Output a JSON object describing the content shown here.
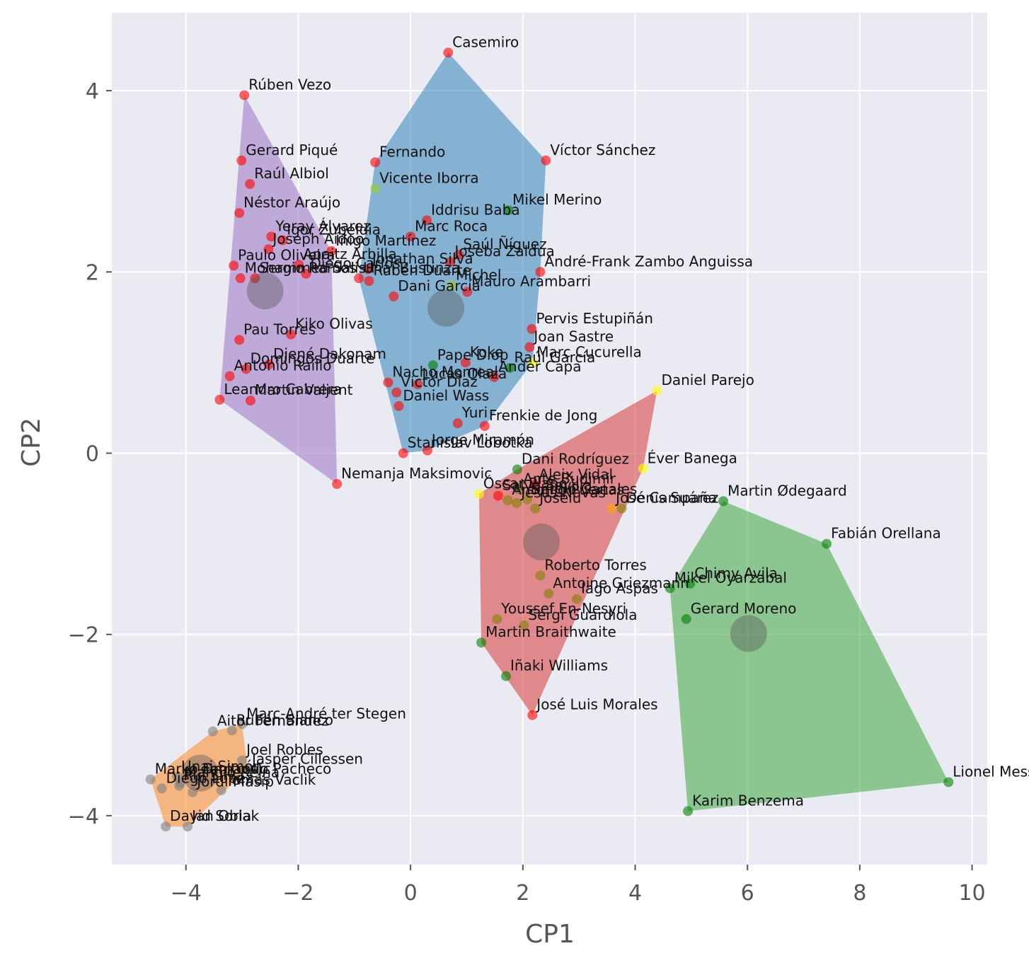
{
  "chart_data": {
    "type": "scatter",
    "xlabel": "CP1",
    "ylabel": "CP2",
    "xlim": [
      -5.32,
      10.27
    ],
    "ylim": [
      -4.54,
      4.86
    ],
    "xticks": [
      {
        "value": -4,
        "label": "−4"
      },
      {
        "value": -2,
        "label": "−2"
      },
      0,
      2,
      4,
      6,
      8,
      10
    ],
    "yticks": [
      {
        "value": -4,
        "label": "−4"
      },
      {
        "value": -2,
        "label": "−2"
      },
      0,
      2,
      4
    ],
    "grid": true,
    "clusters": [
      {
        "color": "#9467bd",
        "centroid": {
          "x": -2.59,
          "y": 1.79
        },
        "labels": [
          "Rúben Vezo",
          "Gerard Piqué",
          "Raúl Albiol",
          "Néstor Araújo",
          "Yeray Álvarez",
          "Igor Zubeldia",
          "Joseph Aidoo",
          "Íñigo Martínez",
          "Anaitz Arbilla",
          "Diego Carlos",
          "Paulo Oliveira",
          "Mohammed Salisu",
          "Sergio Ramos",
          "Kiko Olivas",
          "Pau Torres",
          "Djené Dakonam",
          "Antonio Raíllo",
          "Domingos Duarte",
          "Leandro Cabrera",
          "Martin Valjent",
          "Nemanja Maksimovic"
        ],
        "x": [
          -2.96,
          -3.01,
          -2.86,
          -3.05,
          -2.48,
          -2.28,
          -2.53,
          -1.41,
          -1.99,
          -1.86,
          -3.15,
          -3.03,
          -2.77,
          -2.13,
          -3.05,
          -2.52,
          -3.22,
          -2.93,
          -3.4,
          -2.85,
          -1.31
        ],
        "y": [
          3.95,
          3.23,
          2.97,
          2.65,
          2.39,
          2.35,
          2.25,
          2.23,
          2.08,
          1.98,
          2.07,
          1.93,
          1.93,
          1.31,
          1.25,
          0.98,
          0.85,
          0.93,
          0.59,
          0.58,
          -0.34
        ],
        "colors": [
          "red",
          "red",
          "red",
          "red",
          "red",
          "red",
          "red",
          "red",
          "red",
          "red",
          "red",
          "red",
          "red",
          "red",
          "red",
          "red",
          "red",
          "red",
          "red",
          "red",
          "red"
        ]
      },
      {
        "color": "#1f77b4",
        "centroid": {
          "x": 0.63,
          "y": 1.6
        },
        "labels": [
          "Casemiro",
          "Víctor Sánchez",
          "Fernando",
          "Vicente Iborra",
          "Mikel Merino",
          "Iddrisu Baba",
          "Marc Roca",
          "Saúl Ñíguez",
          "Joseba Zaldua",
          "André-Frank Zambo Anguissa",
          "Unai Bustinza",
          "Jonathan Silva",
          "Rubén Duarte",
          "Míchel",
          "Mauro Arambarri",
          "Dani García",
          "Pervis Estupiñán",
          "Joan Sastre",
          "Marc Cucurella",
          "Raúl García",
          "Koke",
          "Pape Diop",
          "Ander Capa",
          "Nacho Monreal",
          "Lucas Olaza",
          "Víctor Díaz",
          "Daniel Wass",
          "Frenkie de Jong",
          "Yuri",
          "Stanislav Lobotka",
          "Jorge Miramón"
        ],
        "x": [
          0.67,
          2.41,
          -0.63,
          -0.63,
          1.74,
          0.29,
          0.0,
          0.86,
          0.71,
          2.31,
          -0.92,
          -0.76,
          -0.74,
          0.73,
          1.01,
          -0.3,
          2.16,
          2.12,
          2.17,
          1.77,
          0.98,
          0.4,
          1.49,
          -0.4,
          0.13,
          -0.25,
          -0.21,
          1.32,
          0.84,
          -0.13,
          0.3
        ],
        "y": [
          4.42,
          3.23,
          3.21,
          2.92,
          2.68,
          2.57,
          2.39,
          2.19,
          2.11,
          2.0,
          1.93,
          2.03,
          1.9,
          1.85,
          1.78,
          1.73,
          1.37,
          1.17,
          1.0,
          0.94,
          1.0,
          0.97,
          0.84,
          0.78,
          0.76,
          0.67,
          0.52,
          0.3,
          0.33,
          0.0,
          0.03
        ],
        "colors": [
          "red",
          "red",
          "red",
          "yellowgreen",
          "green",
          "red",
          "red",
          "red",
          "red",
          "red",
          "red",
          "red",
          "red",
          "yellowgreen",
          "red",
          "red",
          "red",
          "red",
          "yellow",
          "green",
          "red",
          "green",
          "red",
          "red",
          "red",
          "red",
          "red",
          "red",
          "red",
          "red",
          "red"
        ]
      },
      {
        "color": "#d62728",
        "centroid": {
          "x": 2.33,
          "y": -0.98
        },
        "labels": [
          "Daniel Parejo",
          "Dani Rodríguez",
          "Éver Banega",
          "Aleix Vidal",
          "Óscar Plano",
          "Salva Sevilla",
          "Ante Budimir",
          "Antonio Puertas",
          "Jesús Navas",
          "Sergio Canales",
          "Joselu",
          "Denis Suárez",
          "José Campaña",
          "Roberto Torres",
          "Antoine Griezmann",
          "Iago Aspas",
          "Sergi Guardiola",
          "Youssef En-Nesyri",
          "Martin Braithwaite",
          "Iñaki Williams",
          "José Luis Morales"
        ],
        "x": [
          4.39,
          1.9,
          4.14,
          2.21,
          1.22,
          1.56,
          1.93,
          1.73,
          1.89,
          2.08,
          2.22,
          3.76,
          3.58,
          2.31,
          2.46,
          2.96,
          2.02,
          1.54,
          1.26,
          1.7,
          2.17
        ],
        "y": [
          0.69,
          -0.18,
          -0.17,
          -0.35,
          -0.45,
          -0.47,
          -0.4,
          -0.52,
          -0.55,
          -0.51,
          -0.61,
          -0.61,
          -0.61,
          -1.35,
          -1.55,
          -1.61,
          -1.9,
          -1.83,
          -2.09,
          -2.46,
          -2.89
        ],
        "colors": [
          "yellow",
          "green",
          "yellow",
          "red",
          "yellow",
          "red",
          "olive",
          "olive",
          "olive",
          "olive",
          "olive",
          "olive",
          "orange",
          "olive",
          "olive",
          "olive",
          "olive",
          "olive",
          "green",
          "green",
          "red"
        ]
      },
      {
        "color": "#2ca02c",
        "centroid": {
          "x": 6.02,
          "y": -1.99
        },
        "labels": [
          "Martin Ødegaard",
          "Fabián Orellana",
          "Chimy Avila",
          "Mikel Oyarzabal",
          "Gerard Moreno",
          "Lionel Messi",
          "Karim Benzema"
        ],
        "x": [
          5.57,
          7.41,
          4.98,
          4.62,
          4.91,
          9.58,
          4.94
        ],
        "y": [
          -0.53,
          -1.0,
          -1.44,
          -1.49,
          -1.83,
          -3.63,
          -3.95
        ],
        "colors": [
          "green",
          "green",
          "green",
          "green",
          "green",
          "green",
          "green"
        ]
      },
      {
        "color": "#ff7f0e",
        "centroid": {
          "x": -3.75,
          "y": -3.53
        },
        "labels": [
          "Marc-André ter Stegen",
          "Rubén Blanco",
          "Aitor Fernández",
          "Joel Robles",
          "Jasper Cillessen",
          "Unai Simón",
          "Marko Dmitrovic",
          "Manolo Reina",
          "Tomás Vaclik",
          "Diego López",
          "Jordi Masip",
          "Rui Silva",
          "Fernando Pacheco",
          "Jan Oblak",
          "David Soria"
        ],
        "x": [
          -3.0,
          -3.18,
          -3.52,
          -3.0,
          -2.9,
          -4.16,
          -4.63,
          -4.1,
          -3.37,
          -4.43,
          -3.88,
          -4.12,
          -3.78,
          -3.97,
          -4.36
        ],
        "y": [
          -2.99,
          -3.06,
          -3.07,
          -3.39,
          -3.49,
          -3.57,
          -3.6,
          -3.64,
          -3.72,
          -3.7,
          -3.74,
          -3.67,
          -3.6,
          -4.12,
          -4.12
        ],
        "colors": [
          "gray",
          "gray",
          "gray",
          "gray",
          "gray",
          "gray",
          "gray",
          "gray",
          "gray",
          "gray",
          "gray",
          "gray",
          "gray",
          "gray",
          "gray"
        ]
      }
    ]
  }
}
